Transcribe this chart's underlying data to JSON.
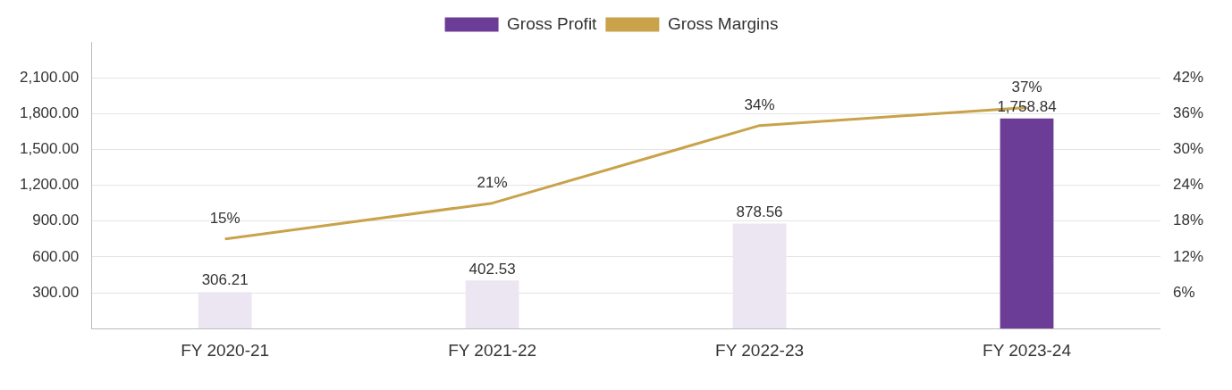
{
  "chart_data": {
    "type": "bar",
    "categories": [
      "FY 2020-21",
      "FY 2021-22",
      "FY 2022-23",
      "FY 2023-24"
    ],
    "series": [
      {
        "name": "Gross Profit",
        "color": "#6c3d96",
        "colors": [
          "#ece6f3",
          "#ece6f3",
          "#ece6f3",
          "#6c3d96"
        ],
        "values": [
          306.21,
          402.53,
          878.56,
          1758.84
        ],
        "value_labels": [
          "306.21",
          "402.53",
          "878.56",
          "1,758.84"
        ]
      },
      {
        "name": "Gross Margins",
        "type": "line",
        "axis": "y2",
        "color": "#c9a24a",
        "values": [
          15,
          21,
          34,
          37
        ],
        "value_labels": [
          "15%",
          "21%",
          "34%",
          "37%"
        ]
      }
    ],
    "ylim": [
      0,
      2400
    ],
    "yticks": [
      {
        "value": 300,
        "label": "300.00"
      },
      {
        "value": 600,
        "label": "600.00"
      },
      {
        "value": 900,
        "label": "900.00"
      },
      {
        "value": 1200,
        "label": "1,200.00"
      },
      {
        "value": 1500,
        "label": "1,500.00"
      },
      {
        "value": 1800,
        "label": "1,800.00"
      },
      {
        "value": 2100,
        "label": "2,100.00"
      }
    ],
    "y2lim": [
      0,
      48
    ],
    "y2ticks": [
      {
        "value": 6,
        "label": "6%"
      },
      {
        "value": 12,
        "label": "12%"
      },
      {
        "value": 18,
        "label": "18%"
      },
      {
        "value": 24,
        "label": "24%"
      },
      {
        "value": 30,
        "label": "30%"
      },
      {
        "value": 36,
        "label": "36%"
      },
      {
        "value": 42,
        "label": "42%"
      }
    ],
    "grid": "y",
    "legend": "top",
    "marker": "none"
  }
}
